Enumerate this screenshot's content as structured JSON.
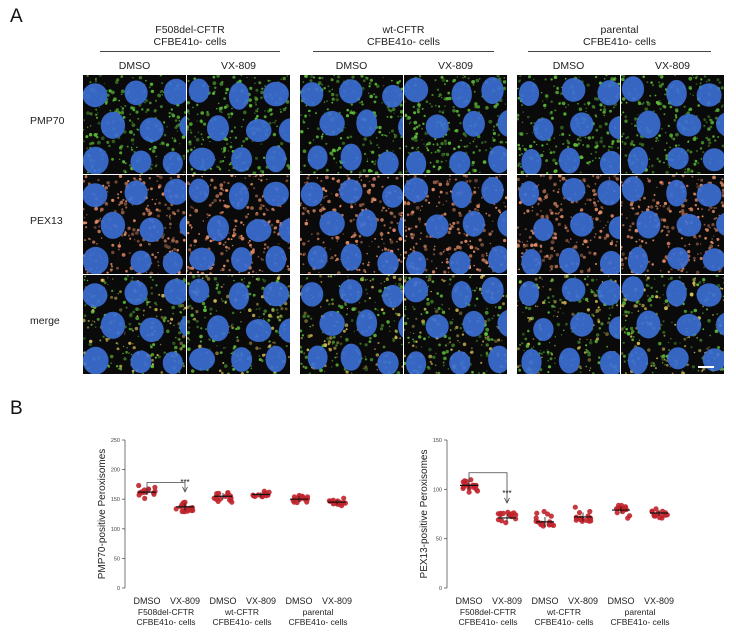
{
  "figure": {
    "panel_a_label": "A",
    "panel_b_label": "B",
    "groups": [
      {
        "title": "F508del-CFTR\nCFBE41o- cells",
        "treatments": [
          "DMSO",
          "VX-809"
        ]
      },
      {
        "title": "wt-CFTR\nCFBE41o- cells",
        "treatments": [
          "DMSO",
          "VX-809"
        ]
      },
      {
        "title": "parental\nCFBE41o- cells",
        "treatments": [
          "DMSO",
          "VX-809"
        ]
      }
    ],
    "rows": [
      "PMP70",
      "PEX13",
      "merge"
    ],
    "colors": {
      "pmp70": "#5fbf3a",
      "pex13": "#e8906a",
      "nucleus": "#3b6fd6",
      "dots": "#c0242b",
      "background": "#0a0a0a"
    }
  },
  "chart_data": [
    {
      "type": "scatter",
      "ylabel": "PMP70-positive Peroxisomes",
      "ylim": [
        0,
        250
      ],
      "yticks": [
        0,
        50,
        100,
        150,
        200,
        250
      ],
      "categories": [
        "DMSO",
        "VX-809",
        "DMSO",
        "VX-809",
        "DMSO",
        "VX-809"
      ],
      "group_labels": [
        "F508del-CFTR\nCFBE41o- cells",
        "wt-CFTR\nCFBE41o- cells",
        "parental\nCFBE41o- cells"
      ],
      "means": [
        162,
        137,
        155,
        158,
        150,
        145
      ],
      "spread": [
        10,
        12,
        11,
        8,
        10,
        8
      ],
      "significance": "***",
      "comparison": [
        0,
        1
      ]
    },
    {
      "type": "scatter",
      "ylabel": "PEX13-positive Peroxisomes",
      "ylim": [
        0,
        150
      ],
      "yticks": [
        0,
        50,
        100,
        150
      ],
      "categories": [
        "DMSO",
        "VX-809",
        "DMSO",
        "VX-809",
        "DMSO",
        "VX-809"
      ],
      "group_labels": [
        "F508del-CFTR\nCFBE41o- cells",
        "wt-CFTR\nCFBE41o- cells",
        "parental\nCFBE41o- cells"
      ],
      "means": [
        104,
        71,
        67,
        72,
        79,
        76
      ],
      "spread": [
        8,
        8,
        10,
        9,
        7,
        6
      ],
      "significance": "***",
      "comparison": [
        0,
        1
      ]
    }
  ]
}
